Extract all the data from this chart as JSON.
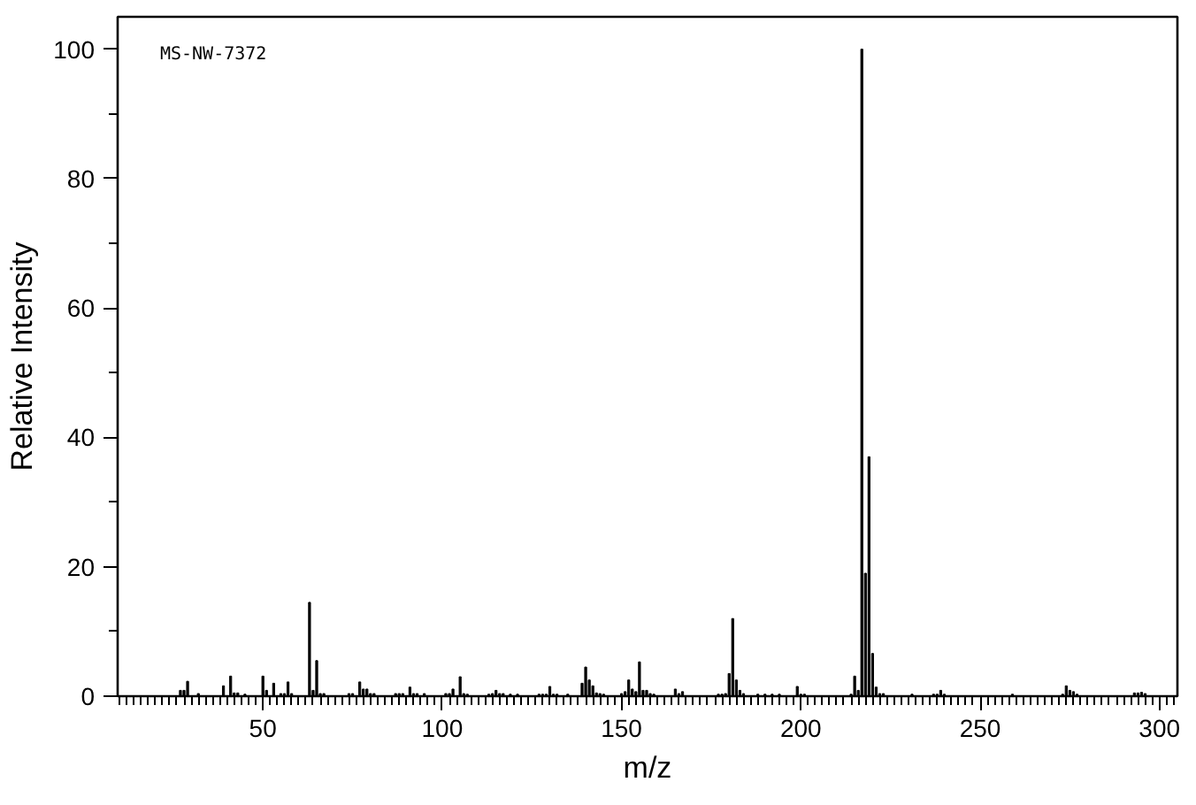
{
  "chart_data": {
    "type": "bar",
    "xlabel": "m/z",
    "ylabel": "Relative Intensity",
    "annotations": [
      "MS-NW-7372"
    ],
    "x": [
      27,
      28,
      29,
      32,
      39,
      41,
      42,
      43,
      45,
      50,
      51,
      53,
      55,
      56,
      57,
      58,
      63,
      64,
      65,
      66,
      67,
      74,
      75,
      77,
      78,
      79,
      80,
      81,
      87,
      88,
      89,
      91,
      92,
      93,
      95,
      101,
      102,
      103,
      105,
      106,
      107,
      113,
      114,
      115,
      116,
      117,
      119,
      121,
      127,
      128,
      129,
      130,
      131,
      132,
      135,
      139,
      140,
      141,
      142,
      143,
      144,
      145,
      150,
      151,
      152,
      153,
      154,
      155,
      156,
      157,
      158,
      159,
      165,
      166,
      167,
      177,
      178,
      179,
      180,
      181,
      182,
      183,
      184,
      188,
      190,
      192,
      194,
      199,
      200,
      201,
      214,
      215,
      216,
      217,
      218,
      219,
      220,
      221,
      222,
      223,
      231,
      237,
      238,
      239,
      240,
      259,
      273,
      274,
      275,
      276,
      277,
      293,
      294,
      295,
      296
    ],
    "values": [
      0.9,
      0.9,
      2.3,
      0.4,
      1.6,
      3.1,
      0.5,
      0.5,
      0.3,
      3.1,
      0.9,
      2.0,
      0.4,
      0.4,
      2.2,
      0.4,
      14.5,
      0.9,
      5.5,
      0.4,
      0.4,
      0.4,
      0.4,
      2.2,
      1.1,
      1.1,
      0.4,
      0.4,
      0.4,
      0.4,
      0.4,
      1.4,
      0.4,
      0.4,
      0.4,
      0.4,
      0.4,
      1.1,
      3.0,
      0.4,
      0.3,
      0.3,
      0.4,
      0.9,
      0.4,
      0.4,
      0.3,
      0.3,
      0.3,
      0.3,
      0.3,
      1.5,
      0.3,
      0.3,
      0.3,
      2.0,
      4.5,
      2.5,
      1.6,
      0.5,
      0.4,
      0.3,
      0.4,
      0.7,
      2.5,
      1.1,
      0.7,
      5.3,
      0.9,
      0.9,
      0.4,
      0.3,
      1.1,
      0.4,
      0.7,
      0.3,
      0.3,
      0.4,
      3.5,
      12.0,
      2.5,
      0.9,
      0.4,
      0.3,
      0.3,
      0.3,
      0.3,
      1.5,
      0.3,
      0.3,
      0.3,
      3.1,
      0.9,
      100,
      19,
      37,
      6.6,
      1.4,
      0.4,
      0.4,
      0.3,
      0.3,
      0.3,
      0.9,
      0.3,
      0.3,
      0.3,
      1.6,
      0.9,
      0.7,
      0.3,
      0.5,
      0.5,
      0.6,
      0.4
    ],
    "color": "#000000",
    "xlim": [
      9.5,
      305
    ],
    "ylim": [
      0,
      105
    ],
    "xticks": [
      50,
      100,
      150,
      200,
      250,
      300,
      {
        "value": 10,
        "label": null
      },
      {
        "value": 12,
        "label": null
      },
      {
        "value": 14,
        "label": null
      },
      {
        "value": 16,
        "label": null
      },
      {
        "value": 18,
        "label": null
      },
      {
        "value": 20,
        "label": null
      },
      {
        "value": 22,
        "label": null
      },
      {
        "value": 24,
        "label": null
      },
      {
        "value": 26,
        "label": null
      },
      {
        "value": 28,
        "label": null
      },
      {
        "value": 30,
        "label": null
      },
      {
        "value": 32,
        "label": null
      },
      {
        "value": 34,
        "label": null
      },
      {
        "value": 36,
        "label": null
      },
      {
        "value": 38,
        "label": null
      },
      {
        "value": 40,
        "label": null
      },
      {
        "value": 42,
        "label": null
      },
      {
        "value": 44,
        "label": null
      },
      {
        "value": 46,
        "label": null
      },
      {
        "value": 48,
        "label": null
      },
      {
        "value": 52,
        "label": null
      },
      {
        "value": 54,
        "label": null
      },
      {
        "value": 56,
        "label": null
      },
      {
        "value": 58,
        "label": null
      },
      {
        "value": 60,
        "label": null
      },
      {
        "value": 62,
        "label": null
      },
      {
        "value": 64,
        "label": null
      },
      {
        "value": 66,
        "label": null
      },
      {
        "value": 68,
        "label": null
      },
      {
        "value": 70,
        "label": null
      },
      {
        "value": 72,
        "label": null
      },
      {
        "value": 74,
        "label": null
      },
      {
        "value": 76,
        "label": null
      },
      {
        "value": 78,
        "label": null
      },
      {
        "value": 80,
        "label": null
      },
      {
        "value": 82,
        "label": null
      },
      {
        "value": 84,
        "label": null
      },
      {
        "value": 86,
        "label": null
      },
      {
        "value": 88,
        "label": null
      },
      {
        "value": 90,
        "label": null
      },
      {
        "value": 92,
        "label": null
      },
      {
        "value": 94,
        "label": null
      },
      {
        "value": 96,
        "label": null
      },
      {
        "value": 98,
        "label": null
      },
      {
        "value": 102,
        "label": null
      },
      {
        "value": 104,
        "label": null
      },
      {
        "value": 106,
        "label": null
      },
      {
        "value": 108,
        "label": null
      },
      {
        "value": 110,
        "label": null
      },
      {
        "value": 112,
        "label": null
      },
      {
        "value": 114,
        "label": null
      },
      {
        "value": 116,
        "label": null
      },
      {
        "value": 118,
        "label": null
      },
      {
        "value": 120,
        "label": null
      },
      {
        "value": 122,
        "label": null
      },
      {
        "value": 124,
        "label": null
      },
      {
        "value": 126,
        "label": null
      },
      {
        "value": 128,
        "label": null
      },
      {
        "value": 130,
        "label": null
      },
      {
        "value": 132,
        "label": null
      },
      {
        "value": 134,
        "label": null
      },
      {
        "value": 136,
        "label": null
      },
      {
        "value": 138,
        "label": null
      },
      {
        "value": 140,
        "label": null
      },
      {
        "value": 142,
        "label": null
      },
      {
        "value": 144,
        "label": null
      },
      {
        "value": 146,
        "label": null
      },
      {
        "value": 148,
        "label": null
      },
      {
        "value": 152,
        "label": null
      },
      {
        "value": 154,
        "label": null
      },
      {
        "value": 156,
        "label": null
      },
      {
        "value": 158,
        "label": null
      },
      {
        "value": 160,
        "label": null
      },
      {
        "value": 162,
        "label": null
      },
      {
        "value": 164,
        "label": null
      },
      {
        "value": 166,
        "label": null
      },
      {
        "value": 168,
        "label": null
      },
      {
        "value": 170,
        "label": null
      },
      {
        "value": 172,
        "label": null
      },
      {
        "value": 174,
        "label": null
      },
      {
        "value": 176,
        "label": null
      },
      {
        "value": 178,
        "label": null
      },
      {
        "value": 180,
        "label": null
      },
      {
        "value": 182,
        "label": null
      },
      {
        "value": 184,
        "label": null
      },
      {
        "value": 186,
        "label": null
      },
      {
        "value": 188,
        "label": null
      },
      {
        "value": 190,
        "label": null
      },
      {
        "value": 192,
        "label": null
      },
      {
        "value": 194,
        "label": null
      },
      {
        "value": 196,
        "label": null
      },
      {
        "value": 198,
        "label": null
      },
      {
        "value": 202,
        "label": null
      },
      {
        "value": 204,
        "label": null
      },
      {
        "value": 206,
        "label": null
      },
      {
        "value": 208,
        "label": null
      },
      {
        "value": 210,
        "label": null
      },
      {
        "value": 212,
        "label": null
      },
      {
        "value": 214,
        "label": null
      },
      {
        "value": 216,
        "label": null
      },
      {
        "value": 218,
        "label": null
      },
      {
        "value": 220,
        "label": null
      },
      {
        "value": 222,
        "label": null
      },
      {
        "value": 224,
        "label": null
      },
      {
        "value": 226,
        "label": null
      },
      {
        "value": 228,
        "label": null
      },
      {
        "value": 230,
        "label": null
      },
      {
        "value": 232,
        "label": null
      },
      {
        "value": 234,
        "label": null
      },
      {
        "value": 236,
        "label": null
      },
      {
        "value": 238,
        "label": null
      },
      {
        "value": 240,
        "label": null
      },
      {
        "value": 242,
        "label": null
      },
      {
        "value": 244,
        "label": null
      },
      {
        "value": 246,
        "label": null
      },
      {
        "value": 248,
        "label": null
      },
      {
        "value": 252,
        "label": null
      },
      {
        "value": 254,
        "label": null
      },
      {
        "value": 256,
        "label": null
      },
      {
        "value": 258,
        "label": null
      },
      {
        "value": 260,
        "label": null
      },
      {
        "value": 262,
        "label": null
      },
      {
        "value": 264,
        "label": null
      },
      {
        "value": 266,
        "label": null
      },
      {
        "value": 268,
        "label": null
      },
      {
        "value": 270,
        "label": null
      },
      {
        "value": 272,
        "label": null
      },
      {
        "value": 274,
        "label": null
      },
      {
        "value": 276,
        "label": null
      },
      {
        "value": 278,
        "label": null
      },
      {
        "value": 280,
        "label": null
      },
      {
        "value": 282,
        "label": null
      },
      {
        "value": 284,
        "label": null
      },
      {
        "value": 286,
        "label": null
      },
      {
        "value": 288,
        "label": null
      },
      {
        "value": 290,
        "label": null
      },
      {
        "value": 292,
        "label": null
      },
      {
        "value": 294,
        "label": null
      },
      {
        "value": 296,
        "label": null
      },
      {
        "value": 298,
        "label": null
      },
      {
        "value": 302,
        "label": null
      },
      {
        "value": 304,
        "label": null
      }
    ],
    "yticks": [
      0,
      20,
      40,
      60,
      80,
      100,
      {
        "value": 10,
        "label": null
      },
      {
        "value": 30,
        "label": null
      },
      {
        "value": 50,
        "label": null
      },
      {
        "value": 70,
        "label": null
      },
      {
        "value": 90,
        "label": null
      }
    ]
  }
}
